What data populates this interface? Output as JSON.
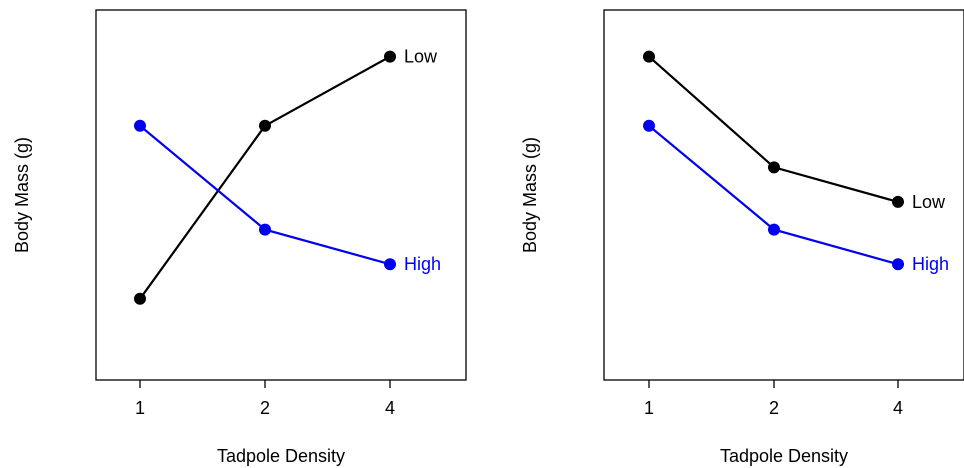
{
  "colors": {
    "low": "#000000",
    "high": "#0000ee"
  },
  "chart_data": [
    {
      "type": "line",
      "title": "",
      "xlabel": "Tadpole Density",
      "ylabel": "Body Mass (g)",
      "categories": [
        "1",
        "2",
        "4"
      ],
      "ylim": [
        0,
        10
      ],
      "show_y_ticks": false,
      "grid": false,
      "series": [
        {
          "name": "Low",
          "color": "#000000",
          "values": [
            2,
            7,
            9
          ]
        },
        {
          "name": "High",
          "color": "#0000ee",
          "values": [
            7,
            4,
            3
          ]
        }
      ]
    },
    {
      "type": "line",
      "title": "",
      "xlabel": "Tadpole Density",
      "ylabel": "Body Mass (g)",
      "categories": [
        "1",
        "2",
        "4"
      ],
      "ylim": [
        0,
        10
      ],
      "show_y_ticks": false,
      "grid": false,
      "series": [
        {
          "name": "Low",
          "color": "#000000",
          "values": [
            9,
            5.8,
            4.8
          ]
        },
        {
          "name": "High",
          "color": "#0000ee",
          "values": [
            7,
            4,
            3
          ]
        }
      ]
    }
  ]
}
